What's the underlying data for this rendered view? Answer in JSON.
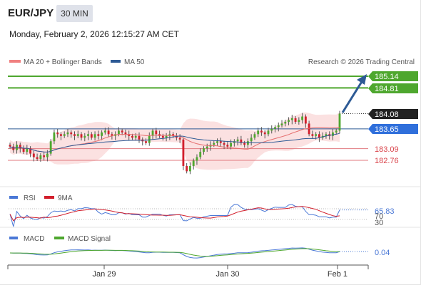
{
  "header": {
    "symbol": "EUR/JPY",
    "timeframe": "30 MIN",
    "datetime": "Monday, February 2, 2026 12:15:27 AM CET"
  },
  "main_panel": {
    "legend": [
      {
        "label": "MA 20 + Bollinger Bands",
        "color": "#f08080"
      },
      {
        "label": "MA 50",
        "color": "#2d5a95"
      }
    ],
    "copyright": "Research © 2026 Trading Central",
    "levels": [
      {
        "value": "185.14",
        "style": "green-tag",
        "color": "#4ea72e"
      },
      {
        "value": "184.81",
        "style": "green-tag",
        "color": "#4ea72e"
      },
      {
        "value": "184.08",
        "style": "dark-tag",
        "color": "#222222"
      },
      {
        "value": "183.65",
        "style": "blue-tag",
        "color": "#2f6fdb"
      },
      {
        "value": "183.09",
        "style": "red-text",
        "color": "#d9434a"
      },
      {
        "value": "182.76",
        "style": "red-text",
        "color": "#d9434a"
      }
    ]
  },
  "rsi_panel": {
    "legend": [
      {
        "label": "RSI",
        "color": "#4a78d6"
      },
      {
        "label": "9MA",
        "color": "#d21f2c"
      }
    ],
    "value": "65.83",
    "levels": [
      "70",
      "30"
    ]
  },
  "macd_panel": {
    "legend": [
      {
        "label": "MACD",
        "color": "#4a78d6"
      },
      {
        "label": "MACD Signal",
        "color": "#4ea72e"
      }
    ],
    "value": "0.04"
  },
  "x_axis": {
    "labels": [
      "Jan 29",
      "Jan 30",
      "Feb 1"
    ]
  },
  "chart_data": {
    "type": "candlestick",
    "ohlc_close_estimate": [
      183.15,
      183.05,
      183.2,
      183.1,
      183.0,
      183.1,
      182.95,
      182.85,
      182.8,
      182.9,
      182.85,
      182.95,
      183.3,
      183.55,
      183.5,
      183.45,
      183.5,
      183.55,
      183.5,
      183.45,
      183.5,
      183.4,
      183.45,
      183.5,
      183.4,
      183.5,
      183.45,
      183.55,
      183.6,
      183.5,
      183.45,
      183.5,
      183.6,
      183.55,
      183.5,
      183.45,
      183.4,
      183.45,
      183.35,
      183.3,
      183.25,
      183.45,
      183.6,
      183.5,
      183.45,
      183.4,
      183.45,
      183.5,
      183.45,
      183.4,
      183.35,
      182.6,
      182.45,
      182.6,
      182.75,
      182.85,
      183.0,
      183.1,
      183.15,
      183.2,
      183.25,
      183.3,
      183.25,
      183.2,
      183.15,
      183.25,
      183.3,
      183.35,
      183.25,
      183.2,
      183.3,
      183.4,
      183.5,
      183.6,
      183.55,
      183.5,
      183.6,
      183.65,
      183.7,
      183.75,
      183.8,
      183.85,
      183.9,
      183.95,
      183.85,
      183.9,
      184.0,
      183.8,
      183.5,
      183.45,
      183.5,
      183.4,
      183.45,
      183.5,
      183.45,
      183.55,
      183.6,
      184.08
    ],
    "levels": [
      185.14,
      184.81,
      184.08,
      183.65,
      183.09,
      182.76
    ],
    "target_arrow": {
      "from": 184.08,
      "to": 185.14
    },
    "x_tick_labels": [
      "Jan 29",
      "Jan 30",
      "Feb 1"
    ],
    "rsi_last": 65.83,
    "macd_last": 0.04
  }
}
